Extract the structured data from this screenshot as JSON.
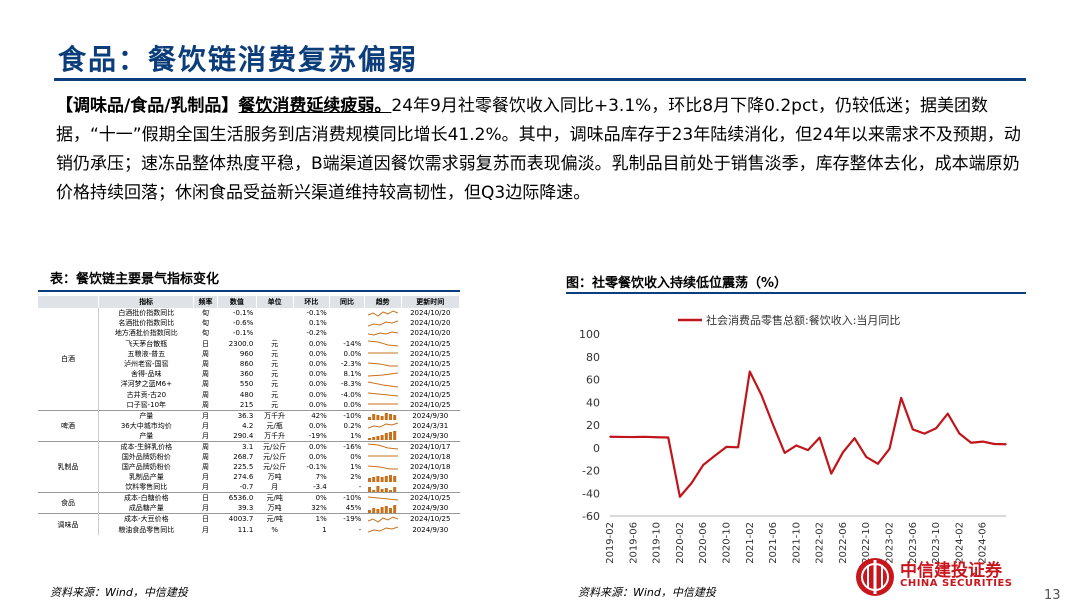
{
  "title": "食品：餐饮链消费复苏偏弱",
  "paragraph": {
    "tag": "【调味品/食品/乳制品】",
    "lead": "餐饮消费延续疲弱。",
    "body": "24年9月社零餐饮收入同比+3.1%，环比8月下降0.2pct，仍较低迷；据美团数据，“十一”假期全国生活服务到店消费规模同比增长41.2%。其中，调味品库存于23年陆续消化，但24年以来需求不及预期，动销仍承压；速冻品整体热度平稳，B端渠道因餐饮需求弱复苏而表现偏淡。乳制品目前处于销售淡季，库存整体去化，成本端原奶价格持续回落；休闲食品受益新兴渠道维持较高韧性，但Q3边际降速。"
  },
  "table": {
    "title": "表：餐饮链主要景气指标变化",
    "headers": [
      "指标",
      "频率",
      "数值",
      "单位",
      "环比",
      "同比",
      "趋势",
      "更新时间"
    ],
    "groups": [
      {
        "category": "白酒",
        "rows": [
          [
            "白酒批价指数同比",
            "旬",
            "-0.1%",
            "",
            "-0.1%",
            "",
            "2024/10/20"
          ],
          [
            "名酒批价指数同比",
            "旬",
            "-0.6%",
            "",
            "0.1%",
            "",
            "2024/10/20"
          ],
          [
            "地方酒批价指数同比",
            "旬",
            "-0.1%",
            "",
            "-0.2%",
            "",
            "2024/10/20"
          ],
          [
            "飞天茅台散瓶",
            "日",
            "2300.0",
            "元",
            "0.0%",
            "-14%",
            "2024/10/25"
          ],
          [
            "五粮液-普五",
            "周",
            "960",
            "元",
            "0.0%",
            "0.0%",
            "2024/10/25"
          ],
          [
            "泸州老窖-国窖",
            "周",
            "860",
            "元",
            "0.0%",
            "-2.3%",
            "2024/10/25"
          ],
          [
            "舍得-品味",
            "周",
            "360",
            "元",
            "0.0%",
            "8.1%",
            "2024/10/25"
          ],
          [
            "洋河梦之蓝M6+",
            "周",
            "550",
            "元",
            "0.0%",
            "-8.3%",
            "2024/10/25"
          ],
          [
            "古井贡-古20",
            "周",
            "480",
            "元",
            "0.0%",
            "-4.0%",
            "2024/10/25"
          ],
          [
            "口子窖-10年",
            "周",
            "215",
            "元",
            "0.0%",
            "0.0%",
            "2024/10/25"
          ]
        ]
      },
      {
        "category": "啤酒",
        "rows": [
          [
            "产量",
            "月",
            "36.3",
            "万千升",
            "42%",
            "-10%",
            "2024/9/30"
          ],
          [
            "36大中城市均价",
            "月",
            "4.2",
            "元/瓶",
            "0.0%",
            "0.2%",
            "2024/3/31"
          ],
          [
            "产量",
            "月",
            "290.4",
            "万千升",
            "-19%",
            "1%",
            "2024/9/30"
          ]
        ]
      },
      {
        "category": "乳制品",
        "rows": [
          [
            "成本-生鲜乳价格",
            "周",
            "3.1",
            "元/公斤",
            "0.0%",
            "-16%",
            "2024/10/17"
          ],
          [
            "国外品牌奶粉价",
            "周",
            "268.7",
            "元/公斤",
            "0.0%",
            "0%",
            "2024/10/18"
          ],
          [
            "国产品牌奶粉价",
            "周",
            "225.5",
            "元/公斤",
            "-0.1%",
            "1%",
            "2024/10/18"
          ],
          [
            "乳制品产量",
            "月",
            "274.6",
            "万吨",
            "7%",
            "2%",
            "2024/9/30"
          ],
          [
            "饮料零售同比",
            "月",
            "-0.7",
            "月",
            "-3.4",
            "-",
            "2024/9/30"
          ]
        ]
      },
      {
        "category": "食品",
        "rows": [
          [
            "成本-白糖价格",
            "日",
            "6536.0",
            "元/吨",
            "0%",
            "-10%",
            "2024/10/25"
          ],
          [
            "成品糖产量",
            "月",
            "39.3",
            "万吨",
            "32%",
            "45%",
            "2024/9/30"
          ]
        ]
      },
      {
        "category": "调味品",
        "rows": [
          [
            "成本-大豆价格",
            "日",
            "4003.7",
            "元/吨",
            "1%",
            "-19%",
            "2024/10/25"
          ],
          [
            "粮油食品零售同比",
            "月",
            "11.1",
            "%",
            "1",
            "-",
            "2024/9/30"
          ]
        ]
      }
    ],
    "source": "资料来源：Wind，中信建投"
  },
  "chart_data": {
    "type": "line",
    "title": "图：社零餐饮收入持续低位震荡（%）",
    "series": [
      {
        "name": "社会消费品零售总额:餐饮收入:当月同比",
        "color": "#c0151b",
        "x": [
          "2019-02",
          "2019-04",
          "2019-06",
          "2019-08",
          "2019-10",
          "2019-12",
          "2020-02",
          "2020-04",
          "2020-06",
          "2020-08",
          "2020-10",
          "2020-12",
          "2021-02",
          "2021-04",
          "2021-06",
          "2021-08",
          "2021-10",
          "2021-12",
          "2022-02",
          "2022-04",
          "2022-06",
          "2022-08",
          "2022-10",
          "2022-12",
          "2023-02",
          "2023-04",
          "2023-06",
          "2023-08",
          "2023-10",
          "2023-12",
          "2024-02",
          "2024-04",
          "2024-06",
          "2024-08",
          "2024-09"
        ],
        "values": [
          9.7,
          9.5,
          9.4,
          9.6,
          9.2,
          9.0,
          -43.1,
          -31.1,
          -15.2,
          -7.0,
          0.8,
          0.4,
          67.0,
          46.4,
          20.1,
          -4.5,
          2.0,
          -2.1,
          8.9,
          -22.7,
          -4.0,
          8.4,
          -8.1,
          -14.1,
          -0.9,
          43.8,
          16.1,
          12.4,
          17.1,
          30.0,
          12.5,
          4.4,
          5.4,
          3.3,
          3.1
        ]
      }
    ],
    "ylim": [
      -60,
      100
    ],
    "yticks": [
      -60,
      -40,
      -20,
      0,
      20,
      40,
      60,
      80,
      100
    ],
    "xticks": [
      "2019-02",
      "2019-06",
      "2019-10",
      "2020-02",
      "2020-06",
      "2020-10",
      "2021-02",
      "2021-06",
      "2021-10",
      "2022-02",
      "2022-06",
      "2022-10",
      "2023-02",
      "2023-06",
      "2023-10",
      "2024-02",
      "2024-06"
    ],
    "legend": "top",
    "grid": false,
    "source": "资料来源：Wind，中信建投"
  },
  "footer": {
    "logo_cn": "中信建投证券",
    "logo_en": "CHINA SECURITIES",
    "page_number": "13"
  }
}
